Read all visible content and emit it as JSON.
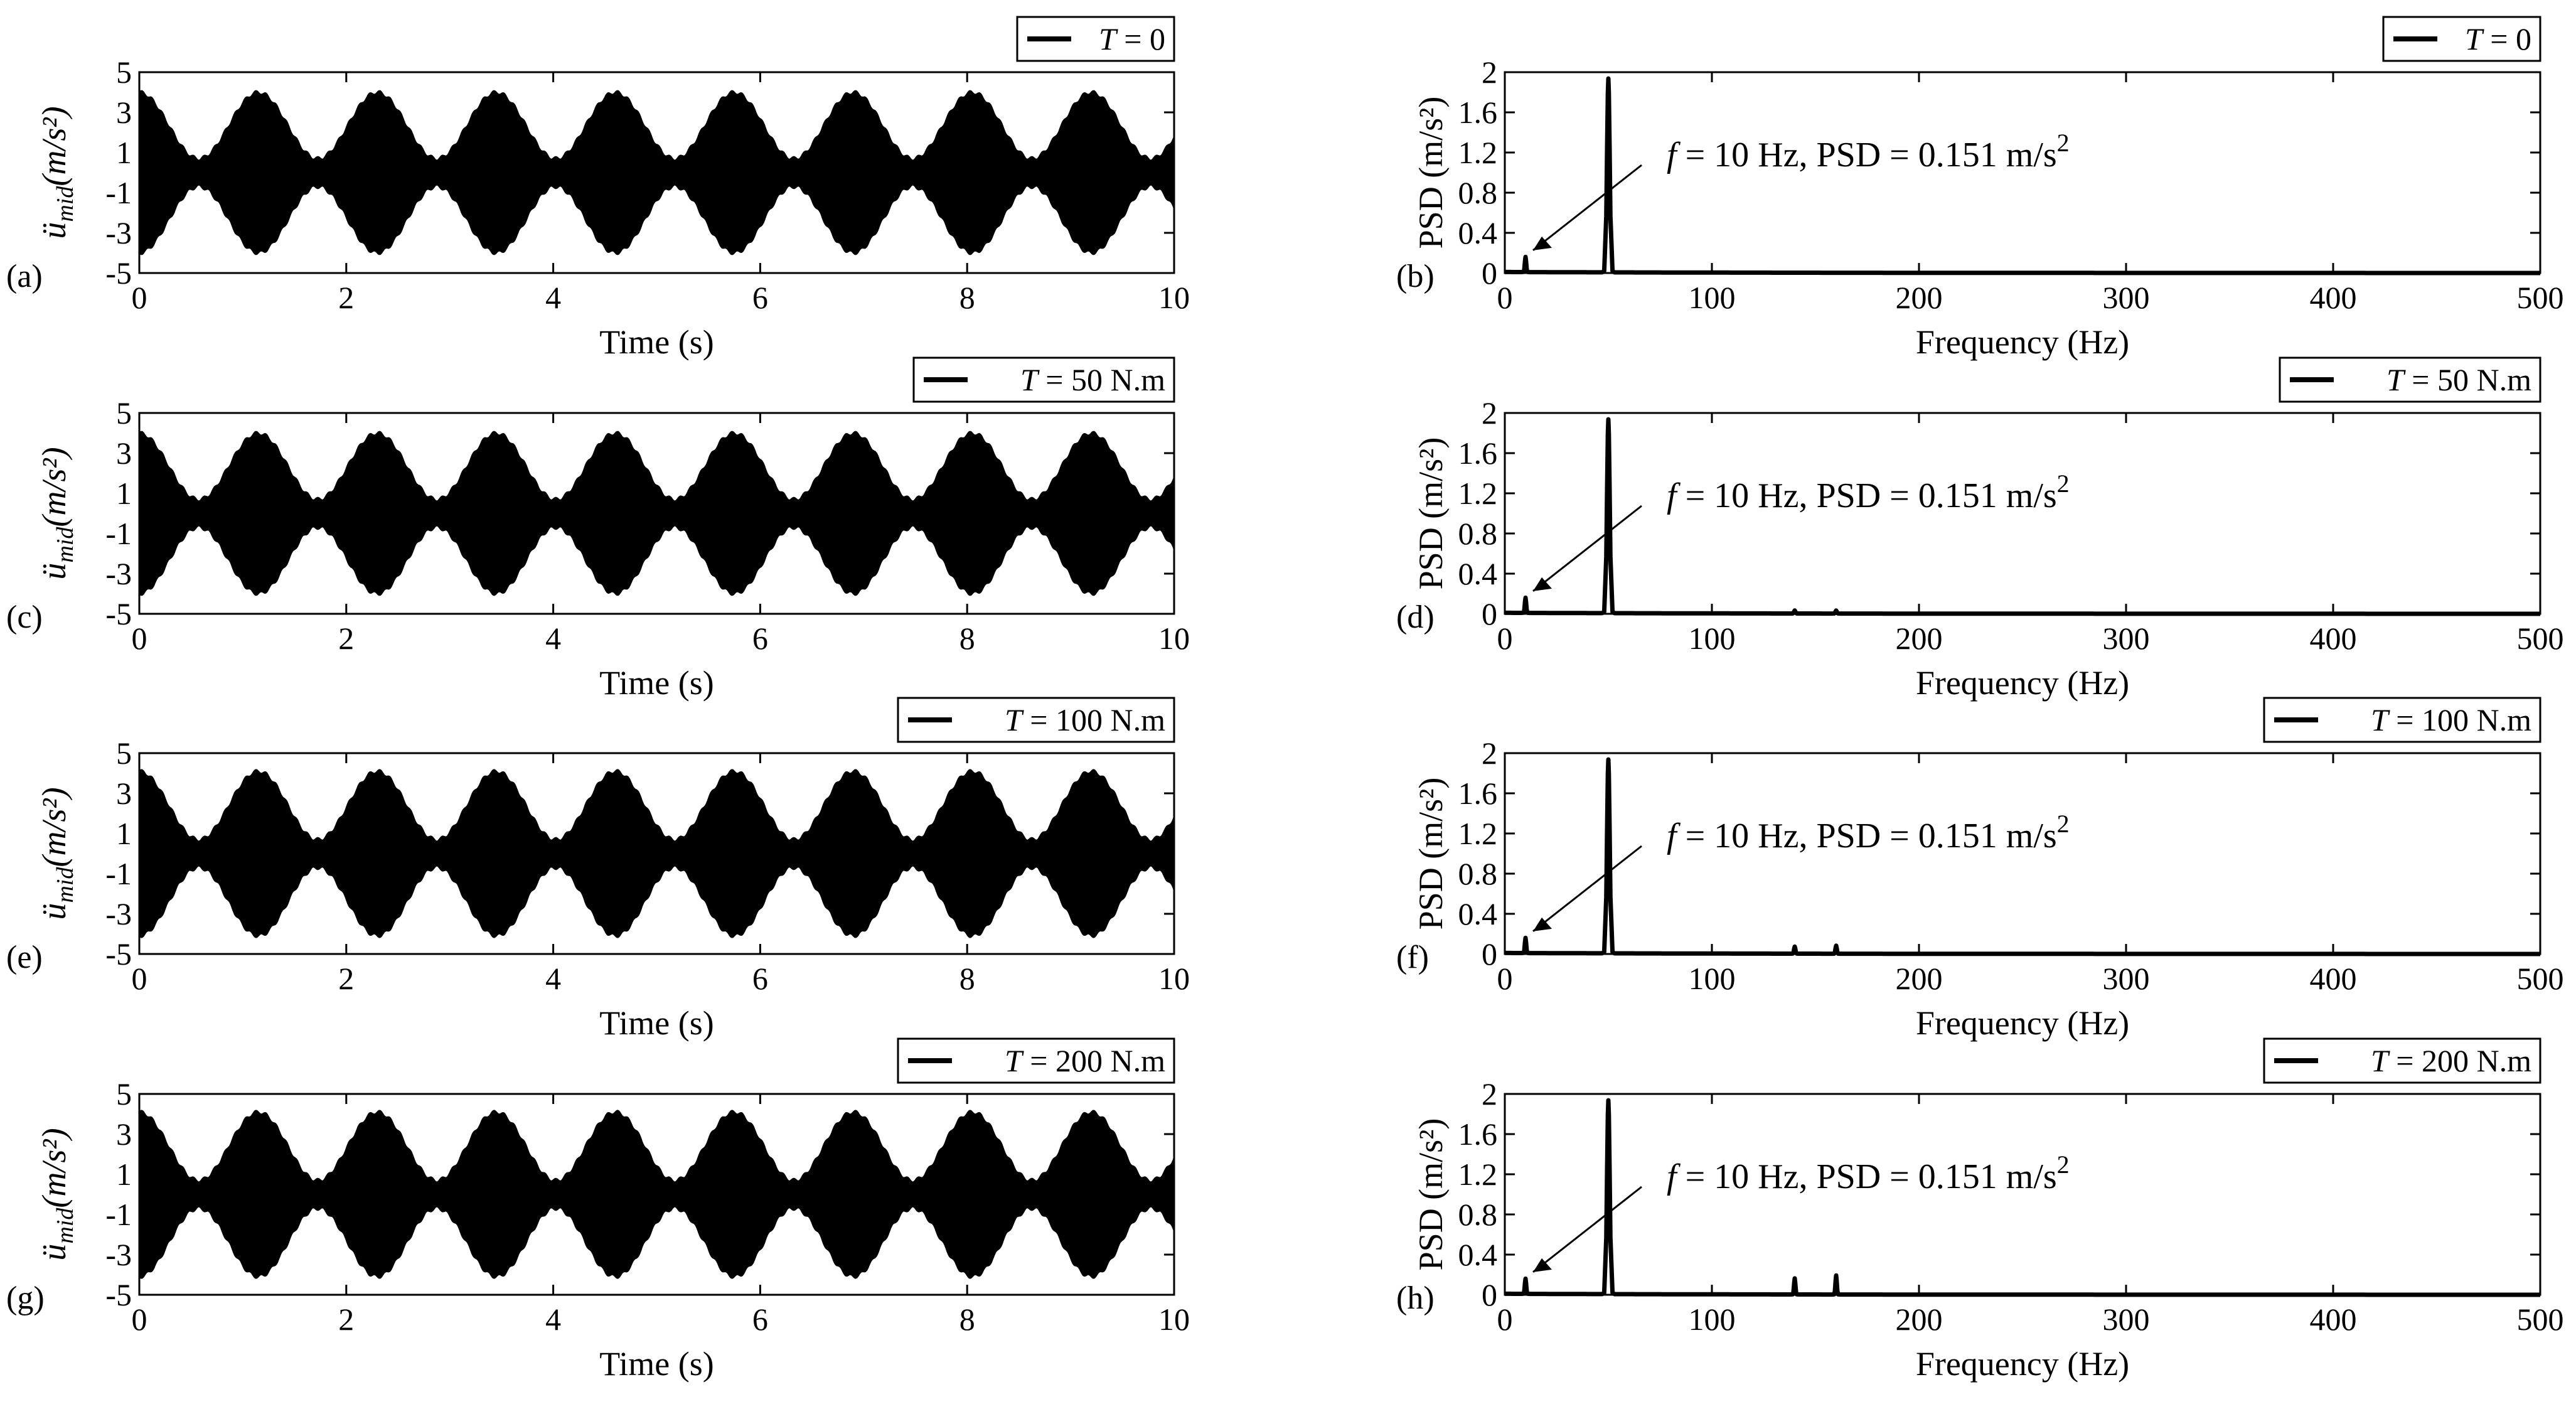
{
  "chart_data": [
    {
      "panel": "(a)",
      "type": "line",
      "legend": "T = 0",
      "legend_italic": "T",
      "legend_rest": " = 0",
      "xlabel": "Time (s)",
      "ylabel_main": "ü",
      "ylabel_sub": "mid",
      "ylabel_unit": "(m/s²)",
      "xlim": [
        0,
        10
      ],
      "ylim": [
        -5,
        5
      ],
      "xticks": [
        0,
        2,
        4,
        6,
        8,
        10
      ],
      "yticks": [
        -5,
        -3,
        -1,
        1,
        3,
        5
      ],
      "signal": {
        "envelope_max": 4.0,
        "envelope_min": 0.7,
        "beat_period_s": 1.15,
        "carrier_hz": 50
      }
    },
    {
      "panel": "(b)",
      "type": "line",
      "legend": "T = 0",
      "legend_italic": "T",
      "legend_rest": " = 0",
      "xlabel": "Frequency (Hz)",
      "ylabel": "PSD (m/s²)",
      "xlim": [
        0,
        500
      ],
      "ylim": [
        0,
        2
      ],
      "xticks": [
        0,
        100,
        200,
        300,
        400,
        500
      ],
      "yticks": [
        0,
        0.4,
        0.8,
        1.2,
        1.6,
        2
      ],
      "annotation": {
        "f_label": "f",
        "text": " = 10 Hz,  PSD = 0.151 m/s",
        "sup": "2",
        "target": [
          10,
          0.151
        ]
      },
      "peaks": [
        {
          "x": 10,
          "y": 0.151
        },
        {
          "x": 50,
          "y": 1.93
        }
      ]
    },
    {
      "panel": "(c)",
      "type": "line",
      "legend": "T = 50 N.m",
      "legend_italic": "T",
      "legend_rest": " = 50 N.m",
      "xlabel": "Time (s)",
      "ylabel_main": "ü",
      "ylabel_sub": "mid",
      "ylabel_unit": "(m/s²)",
      "xlim": [
        0,
        10
      ],
      "ylim": [
        -5,
        5
      ],
      "xticks": [
        0,
        2,
        4,
        6,
        8,
        10
      ],
      "yticks": [
        -5,
        -3,
        -1,
        1,
        3,
        5
      ],
      "signal": {
        "envelope_max": 4.0,
        "envelope_min": 0.7,
        "beat_period_s": 1.15,
        "carrier_hz": 50
      }
    },
    {
      "panel": "(d)",
      "type": "line",
      "legend": "T = 50 N.m",
      "legend_italic": "T",
      "legend_rest": " = 50 N.m",
      "xlabel": "Frequency (Hz)",
      "ylabel": "PSD (m/s²)",
      "xlim": [
        0,
        500
      ],
      "ylim": [
        0,
        2
      ],
      "xticks": [
        0,
        100,
        200,
        300,
        400,
        500
      ],
      "yticks": [
        0,
        0.4,
        0.8,
        1.2,
        1.6,
        2
      ],
      "annotation": {
        "f_label": "f",
        "text": " = 10 Hz,  PSD = 0.151 m/s",
        "sup": "2",
        "target": [
          10,
          0.151
        ]
      },
      "peaks": [
        {
          "x": 10,
          "y": 0.151
        },
        {
          "x": 50,
          "y": 1.93
        },
        {
          "x": 140,
          "y": 0.03
        },
        {
          "x": 160,
          "y": 0.03
        }
      ]
    },
    {
      "panel": "(e)",
      "type": "line",
      "legend": "T = 100 N.m",
      "legend_italic": "T",
      "legend_rest": " = 100 N.m",
      "xlabel": "Time (s)",
      "ylabel_main": "ü",
      "ylabel_sub": "mid",
      "ylabel_unit": "(m/s²)",
      "xlim": [
        0,
        10
      ],
      "ylim": [
        -5,
        5
      ],
      "xticks": [
        0,
        2,
        4,
        6,
        8,
        10
      ],
      "yticks": [
        -5,
        -3,
        -1,
        1,
        3,
        5
      ],
      "signal": {
        "envelope_max": 4.1,
        "envelope_min": 0.7,
        "beat_period_s": 1.15,
        "carrier_hz": 50
      }
    },
    {
      "panel": "(f)",
      "type": "line",
      "legend": "T = 100 N.m",
      "legend_italic": "T",
      "legend_rest": " = 100 N.m",
      "xlabel": "Frequency (Hz)",
      "ylabel": "PSD (m/s²)",
      "xlim": [
        0,
        500
      ],
      "ylim": [
        0,
        2
      ],
      "xticks": [
        0,
        100,
        200,
        300,
        400,
        500
      ],
      "yticks": [
        0,
        0.4,
        0.8,
        1.2,
        1.6,
        2
      ],
      "annotation": {
        "f_label": "f",
        "text": " = 10 Hz,  PSD = 0.151 m/s",
        "sup": "2",
        "target": [
          10,
          0.151
        ]
      },
      "peaks": [
        {
          "x": 10,
          "y": 0.151
        },
        {
          "x": 50,
          "y": 1.93
        },
        {
          "x": 140,
          "y": 0.07
        },
        {
          "x": 160,
          "y": 0.08
        }
      ]
    },
    {
      "panel": "(g)",
      "type": "line",
      "legend": "T = 200 N.m",
      "legend_italic": "T",
      "legend_rest": " = 200 N.m",
      "xlabel": "Time (s)",
      "ylabel_main": "ü",
      "ylabel_sub": "mid",
      "ylabel_unit": "(m/s²)",
      "xlim": [
        0,
        10
      ],
      "ylim": [
        -5,
        5
      ],
      "xticks": [
        0,
        2,
        4,
        6,
        8,
        10
      ],
      "yticks": [
        -5,
        -3,
        -1,
        1,
        3,
        5
      ],
      "signal": {
        "envelope_max": 4.1,
        "envelope_min": 0.7,
        "beat_period_s": 1.15,
        "carrier_hz": 50
      }
    },
    {
      "panel": "(h)",
      "type": "line",
      "legend": "T = 200 N.m",
      "legend_italic": "T",
      "legend_rest": " = 200 N.m",
      "xlabel": "Frequency (Hz)",
      "ylabel": "PSD (m/s²)",
      "xlim": [
        0,
        500
      ],
      "ylim": [
        0,
        2
      ],
      "xticks": [
        0,
        100,
        200,
        300,
        400,
        500
      ],
      "yticks": [
        0,
        0.4,
        0.8,
        1.2,
        1.6,
        2
      ],
      "annotation": {
        "f_label": "f",
        "text": " = 10 Hz,  PSD = 0.151 m/s",
        "sup": "2",
        "target": [
          10,
          0.151
        ]
      },
      "peaks": [
        {
          "x": 10,
          "y": 0.151
        },
        {
          "x": 50,
          "y": 1.93
        },
        {
          "x": 140,
          "y": 0.16
        },
        {
          "x": 160,
          "y": 0.19
        }
      ]
    }
  ]
}
